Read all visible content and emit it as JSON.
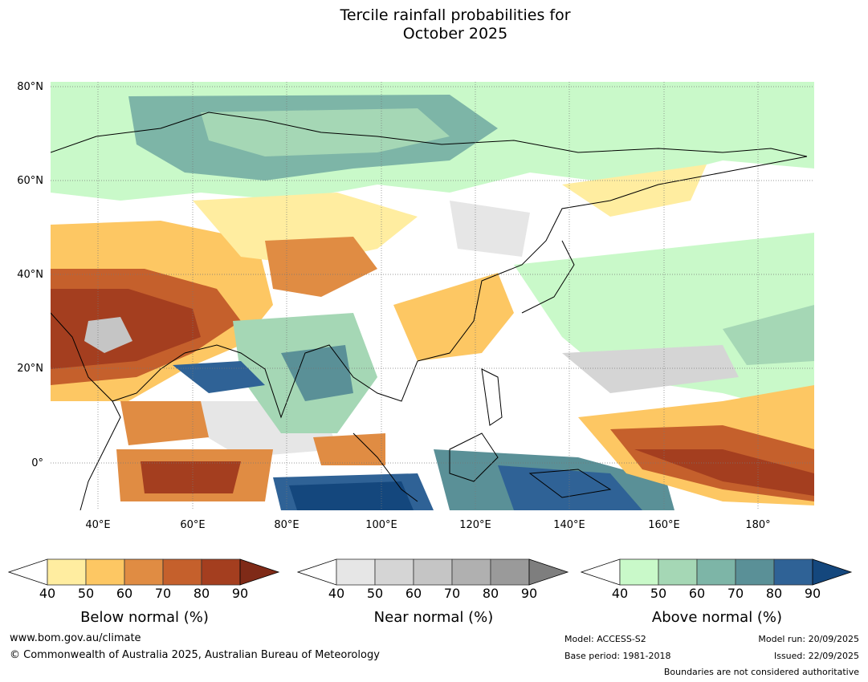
{
  "title": {
    "line1": "Tercile rainfall probabilities for",
    "line2": "October 2025"
  },
  "map": {
    "lat_labels": [
      "80°N",
      "60°N",
      "40°N",
      "20°N",
      "0°"
    ],
    "lon_labels": [
      "40°E",
      "60°E",
      "80°E",
      "100°E",
      "120°E",
      "140°E",
      "160°E",
      "180°"
    ],
    "colors": {
      "below": [
        "#ffeda0",
        "#fdc763",
        "#e08c43",
        "#c5602c",
        "#a43e1f",
        "#7f2a17"
      ],
      "near": [
        "#e6e6e6",
        "#d5d5d5",
        "#c5c5c5",
        "#b0b0b0",
        "#9a9a9a",
        "#7e7e7e"
      ],
      "above": [
        "#c9f9c9",
        "#a5d7b5",
        "#7db5a7",
        "#5a9097",
        "#2f6296",
        "#14477d"
      ],
      "land_border": "#888888",
      "coast": "#000000"
    }
  },
  "colorbars": [
    {
      "name": "below",
      "label": "Below normal (%)",
      "ticks": [
        "40",
        "50",
        "60",
        "70",
        "80",
        "90"
      ]
    },
    {
      "name": "near",
      "label": "Near normal (%)",
      "ticks": [
        "40",
        "50",
        "60",
        "70",
        "80",
        "90"
      ]
    },
    {
      "name": "above",
      "label": "Above normal (%)",
      "ticks": [
        "40",
        "50",
        "60",
        "70",
        "80",
        "90"
      ]
    }
  ],
  "footer": {
    "url": "www.bom.gov.au/climate",
    "copyright": "© Commonwealth of Australia 2025, Australian Bureau of Meteorology",
    "model": "Model: ACCESS-S2",
    "base_period": "Base period: 1981-2018",
    "model_run": "Model run: 20/09/2025",
    "issued": "Issued: 22/09/2025",
    "disclaimer": "Boundaries are not considered authoritative"
  }
}
